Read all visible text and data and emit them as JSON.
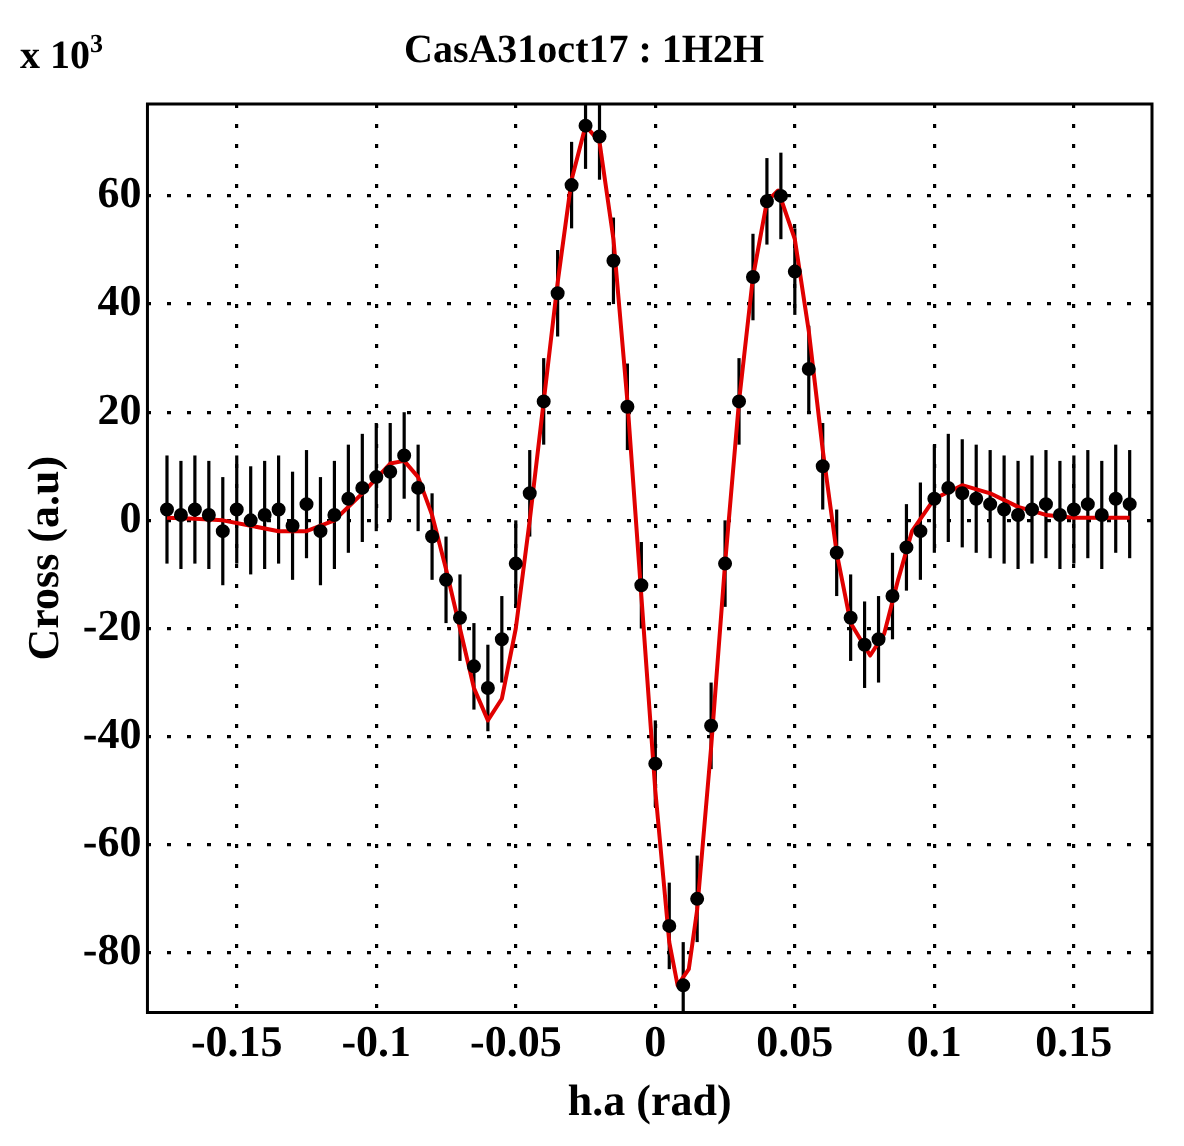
{
  "chart_data": {
    "type": "scatter",
    "title": "CasA31oct17 : 1H2H",
    "xlabel": "h.a (rad)",
    "ylabel": "Cross (a.u)",
    "annotations": [
      "x 10$^{3}$"
    ],
    "xlim": [
      -0.182,
      0.178
    ],
    "xticks": [
      {
        "value": -0.15,
        "label": "-0.15"
      },
      {
        "value": -0.1,
        "label": "-0.1"
      },
      {
        "value": -0.05,
        "label": "-0.05"
      },
      0,
      0.05,
      0.1,
      0.15
    ],
    "ylim": [
      -91,
      77
    ],
    "yticks": [
      -80,
      -60,
      -40,
      -20,
      0,
      20,
      40,
      60
    ],
    "grid": true,
    "legend": false,
    "series": [
      {
        "type": "scatter",
        "color": "#000000",
        "marker": "circle",
        "x": [
          -0.175,
          -0.17,
          -0.165,
          -0.16,
          -0.155,
          -0.15,
          -0.145,
          -0.14,
          -0.135,
          -0.13,
          -0.125,
          -0.12,
          -0.115,
          -0.11,
          -0.105,
          -0.1,
          -0.095,
          -0.09,
          -0.085,
          -0.08,
          -0.075,
          -0.07,
          -0.065,
          -0.06,
          -0.055,
          -0.05,
          -0.045,
          -0.04,
          -0.035,
          -0.03,
          -0.025,
          -0.02,
          -0.015,
          -0.01,
          -0.005,
          0,
          0.005,
          0.01,
          0.015,
          0.02,
          0.025,
          0.03,
          0.035,
          0.04,
          0.045,
          0.05,
          0.055,
          0.06,
          0.065,
          0.07,
          0.075,
          0.08,
          0.085,
          0.09,
          0.095,
          0.1,
          0.105,
          0.11,
          0.115,
          0.12,
          0.125,
          0.13,
          0.135,
          0.14,
          0.145,
          0.15,
          0.155,
          0.16,
          0.165,
          0.17
        ],
        "values": [
          2,
          1,
          2,
          1,
          -2,
          2,
          0,
          1,
          2,
          -1,
          3,
          -2,
          1,
          4,
          6,
          8,
          9,
          12,
          6,
          -3,
          -11,
          -18,
          -27,
          -31,
          -22,
          -8,
          5,
          22,
          42,
          62,
          73,
          71,
          48,
          21,
          -12,
          -45,
          -75,
          -86,
          -70,
          -38,
          -8,
          22,
          45,
          59,
          60,
          46,
          28,
          10,
          -6,
          -18,
          -23,
          -22,
          -14,
          -5,
          -2,
          4,
          6,
          5,
          4,
          3,
          2,
          1,
          2,
          3,
          1,
          2,
          3,
          1,
          4,
          3
        ],
        "errors": [
          10,
          10,
          10,
          10,
          10,
          10,
          10,
          10,
          10,
          10,
          10,
          10,
          10,
          10,
          10,
          10,
          9,
          8,
          8,
          8,
          8,
          8,
          8,
          8,
          8,
          8,
          8,
          8,
          8,
          8,
          [
            65,
            77
          ],
          [
            63,
            77
          ],
          8,
          8,
          8,
          8,
          8,
          [
            -91,
            -78
          ],
          8,
          8,
          8,
          8,
          8,
          8,
          8,
          8,
          8,
          8,
          8,
          8,
          8,
          8,
          8,
          8,
          9,
          10,
          10,
          10,
          10,
          10,
          10,
          10,
          10,
          10,
          10,
          10,
          10,
          10,
          10,
          10
        ]
      },
      {
        "type": "line",
        "color": "#e00000",
        "marker": "none",
        "x": [
          -0.175,
          -0.165,
          -0.155,
          -0.145,
          -0.135,
          -0.125,
          -0.115,
          -0.105,
          -0.095,
          -0.09,
          -0.085,
          -0.08,
          -0.075,
          -0.07,
          -0.065,
          -0.06,
          -0.055,
          -0.05,
          -0.045,
          -0.04,
          -0.035,
          -0.03,
          -0.025,
          -0.02,
          -0.015,
          -0.01,
          -0.005,
          0,
          0.005,
          0.008,
          0.012,
          0.015,
          0.02,
          0.025,
          0.03,
          0.035,
          0.04,
          0.044,
          0.05,
          0.055,
          0.06,
          0.065,
          0.07,
          0.077,
          0.082,
          0.087,
          0.092,
          0.1,
          0.11,
          0.12,
          0.13,
          0.14,
          0.15,
          0.16,
          0.17
        ],
        "values": [
          0.5,
          0.3,
          0,
          -1,
          -2,
          -2,
          0,
          5,
          10.5,
          11,
          8,
          1,
          -9,
          -20,
          -31,
          -37,
          -33,
          -20,
          0,
          22,
          44,
          63,
          73,
          70,
          52,
          22,
          -14,
          -50,
          -78,
          -86,
          -83,
          -72,
          -42,
          -8,
          22,
          45,
          59,
          61,
          52,
          35,
          13,
          -6,
          -19,
          -25,
          -21,
          -11,
          -2,
          4,
          6.5,
          5,
          2.5,
          1,
          0.5,
          0.5,
          0.5
        ]
      }
    ]
  }
}
